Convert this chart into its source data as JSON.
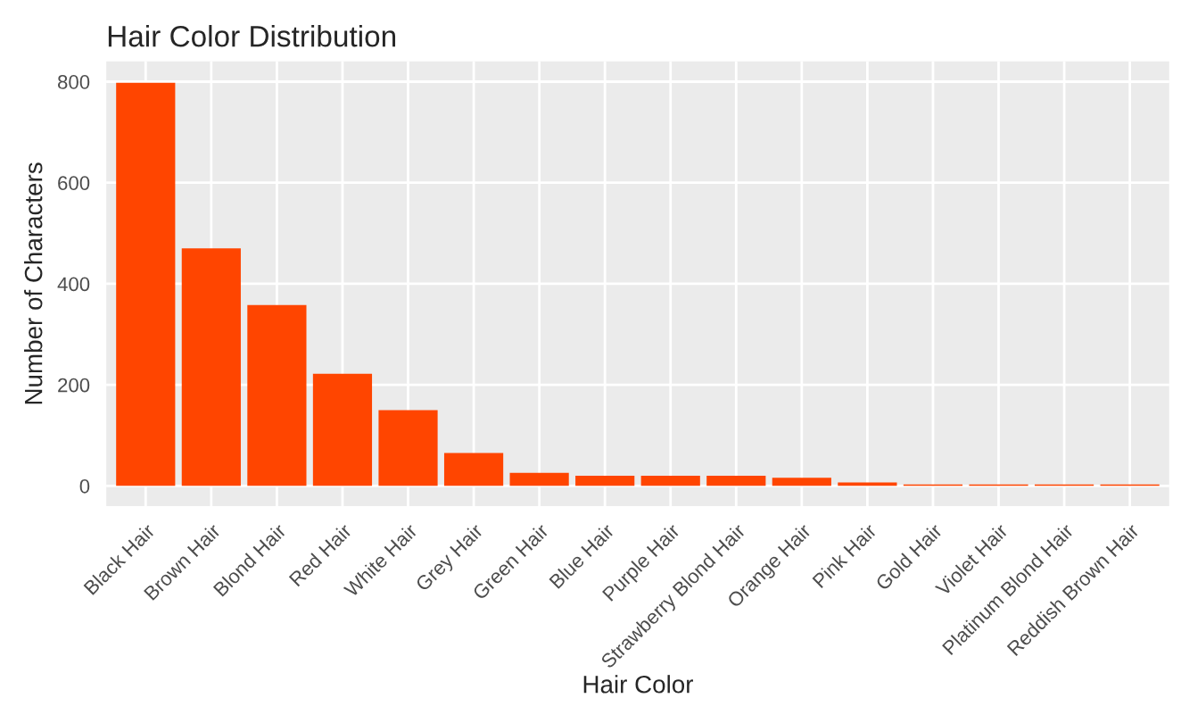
{
  "chart_data": {
    "type": "bar",
    "title": "Hair Color Distribution",
    "xlabel": "Hair Color",
    "ylabel": "Number of Characters",
    "categories": [
      "Black Hair",
      "Brown Hair",
      "Blond Hair",
      "Red Hair",
      "White Hair",
      "Grey Hair",
      "Green Hair",
      "Blue Hair",
      "Purple Hair",
      "Strawberry Blond Hair",
      "Orange Hair",
      "Pink Hair",
      "Gold Hair",
      "Violet Hair",
      "Platinum Blond Hair",
      "Reddish Brown Hair"
    ],
    "values": [
      798,
      470,
      358,
      222,
      150,
      65,
      26,
      20,
      20,
      20,
      16,
      7,
      3,
      3,
      3,
      3
    ],
    "color": "#ff4500",
    "ylim": [
      -40,
      840
    ],
    "yticks": [
      0,
      200,
      400,
      600,
      800
    ],
    "grid": true
  }
}
